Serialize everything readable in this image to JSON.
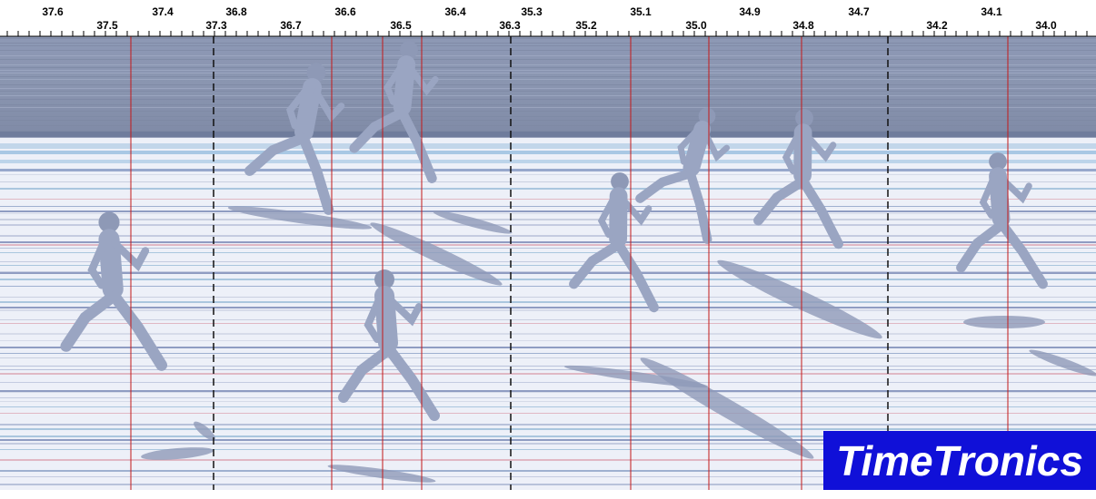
{
  "scale": {
    "labels": [
      "37.6",
      "37.5",
      "37.4",
      "37.3",
      "36.8",
      "36.7",
      "36.6",
      "36.5",
      "36.4",
      "36.3",
      "35.3",
      "35.2",
      "35.1",
      "35.0",
      "34.9",
      "34.8",
      "34.7",
      "34.2",
      "34.1",
      "34.0"
    ]
  },
  "logo": {
    "text": "TimeTronics"
  }
}
